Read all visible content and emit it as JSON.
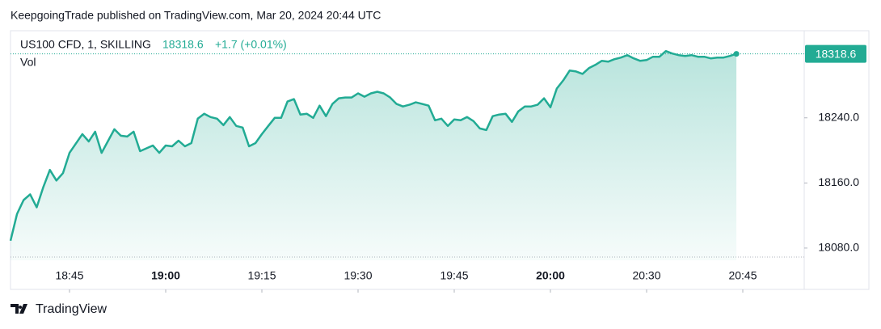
{
  "header": {
    "text": "KeepgoingTrade published on TradingView.com, Mar 20, 2024 20:44 UTC"
  },
  "chart_data": {
    "type": "area",
    "symbol": "US100 CFD, 1, SKILLING",
    "last_price": 18318.6,
    "change": "+1.7 (+0.01%)",
    "volume_label": "Vol",
    "color": "#22ab94",
    "x": [
      "18:36",
      "18:37",
      "18:38",
      "18:39",
      "18:40",
      "18:41",
      "18:42",
      "18:43",
      "18:44",
      "18:45",
      "18:47",
      "18:48",
      "18:49",
      "18:50",
      "18:52",
      "18:53",
      "18:54",
      "18:55",
      "18:56",
      "18:58",
      "18:59",
      "19:00",
      "19:01",
      "19:02",
      "19:03",
      "19:04",
      "19:05",
      "19:06",
      "19:07",
      "19:08",
      "19:09",
      "19:10",
      "19:11",
      "19:12",
      "19:13",
      "19:14",
      "19:15",
      "19:16",
      "19:17",
      "19:18",
      "19:19",
      "19:20",
      "19:21",
      "19:22",
      "19:23",
      "19:24",
      "19:25",
      "19:26",
      "19:27",
      "19:28",
      "19:29",
      "19:30",
      "19:31",
      "19:32",
      "19:33",
      "19:34",
      "19:35",
      "19:36",
      "19:37",
      "19:38",
      "19:39",
      "19:40",
      "19:41",
      "19:42",
      "19:43",
      "19:44",
      "19:45",
      "19:46",
      "19:47",
      "19:48",
      "19:49",
      "19:50",
      "19:51",
      "19:52",
      "19:53",
      "19:54",
      "19:55",
      "19:56",
      "19:57",
      "19:58",
      "19:59",
      "20:00",
      "20:02",
      "20:04",
      "20:06",
      "20:08",
      "20:10",
      "20:12",
      "20:14",
      "20:16",
      "20:18",
      "20:20",
      "20:22",
      "20:24",
      "20:26",
      "20:28",
      "20:30",
      "20:31",
      "20:32",
      "20:33",
      "20:34",
      "20:35",
      "20:36",
      "20:37",
      "20:38",
      "20:39",
      "20:40",
      "20:41",
      "20:42",
      "20:43",
      "20:44"
    ],
    "values": [
      18089,
      18122,
      18139,
      18146,
      18130,
      18155,
      18176,
      18163,
      18172,
      18197,
      18220,
      18211,
      18223,
      18197,
      18226,
      18218,
      18217,
      18223,
      18199,
      18206,
      18197,
      18206,
      18205,
      18212,
      18205,
      18209,
      18239,
      18245,
      18241,
      18239,
      18231,
      18241,
      18230,
      18228,
      18205,
      18209,
      18220,
      18230,
      18240,
      18240,
      18260,
      18263,
      18244,
      18245,
      18240,
      18255,
      18242,
      18257,
      18264,
      18265,
      18265,
      18270,
      18266,
      18270,
      18272,
      18270,
      18265,
      18257,
      18254,
      18256,
      18259,
      18257,
      18255,
      18237,
      18239,
      18230,
      18238,
      18237,
      18241,
      18236,
      18227,
      18225,
      18242,
      18244,
      18245,
      18235,
      18248,
      18254,
      18254,
      18256,
      18264,
      18253,
      18276,
      18286,
      18298,
      18297,
      18294,
      18301,
      18305,
      18310,
      18309,
      18312,
      18314,
      18317,
      18313,
      18310,
      18311,
      18315,
      18315,
      18322,
      18319,
      18317,
      18316,
      18317,
      18315,
      18315,
      18313,
      18314,
      18314,
      18316,
      18318.6
    ],
    "xlim": [
      "18:36",
      "20:55"
    ],
    "xticks": [
      "18:45",
      "19:00",
      "19:15",
      "19:30",
      "19:45",
      "20:00",
      "20:30",
      "20:45"
    ],
    "ylim": [
      18065,
      18347
    ],
    "yticks": [
      {
        "value": 18080,
        "label": "18080.0"
      },
      {
        "value": 18160,
        "label": "18160.0"
      },
      {
        "value": 18240,
        "label": "18240.0"
      }
    ]
  },
  "footer": {
    "brand": "TradingView"
  }
}
